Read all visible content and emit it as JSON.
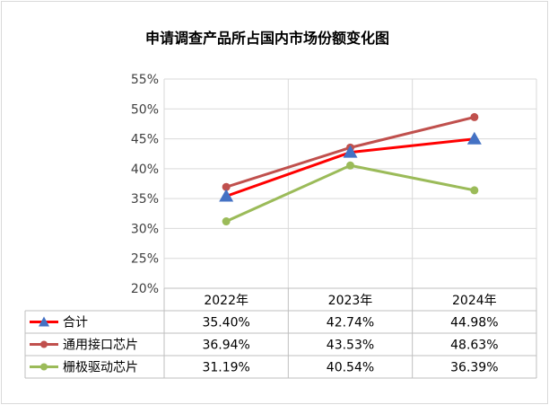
{
  "chart_data": {
    "type": "line",
    "title": "申请调查产品所占国内市场份额变化图",
    "categories": [
      "2022年",
      "2023年",
      "2024年"
    ],
    "ylim": [
      20,
      55
    ],
    "yticks": [
      "20%",
      "25%",
      "30%",
      "35%",
      "40%",
      "45%",
      "50%",
      "55%"
    ],
    "yunit": "%",
    "grid": true,
    "legend": "data-table",
    "series": [
      {
        "name": "合计",
        "values": [
          35.4,
          42.74,
          44.98
        ],
        "labels": [
          "35.40%",
          "42.74%",
          "44.98%"
        ],
        "color": "#ff0000",
        "marker": "triangle",
        "marker_color": "#4472c4"
      },
      {
        "name": "通用接口芯片",
        "values": [
          36.94,
          43.53,
          48.63
        ],
        "labels": [
          "36.94%",
          "43.53%",
          "48.63%"
        ],
        "color": "#c0504d",
        "marker": "circle",
        "marker_color": "#c0504d"
      },
      {
        "name": "栅极驱动芯片",
        "values": [
          31.19,
          40.54,
          36.39
        ],
        "labels": [
          "31.19%",
          "40.54%",
          "36.39%"
        ],
        "color": "#9bbb59",
        "marker": "circle",
        "marker_color": "#9bbb59"
      }
    ]
  }
}
